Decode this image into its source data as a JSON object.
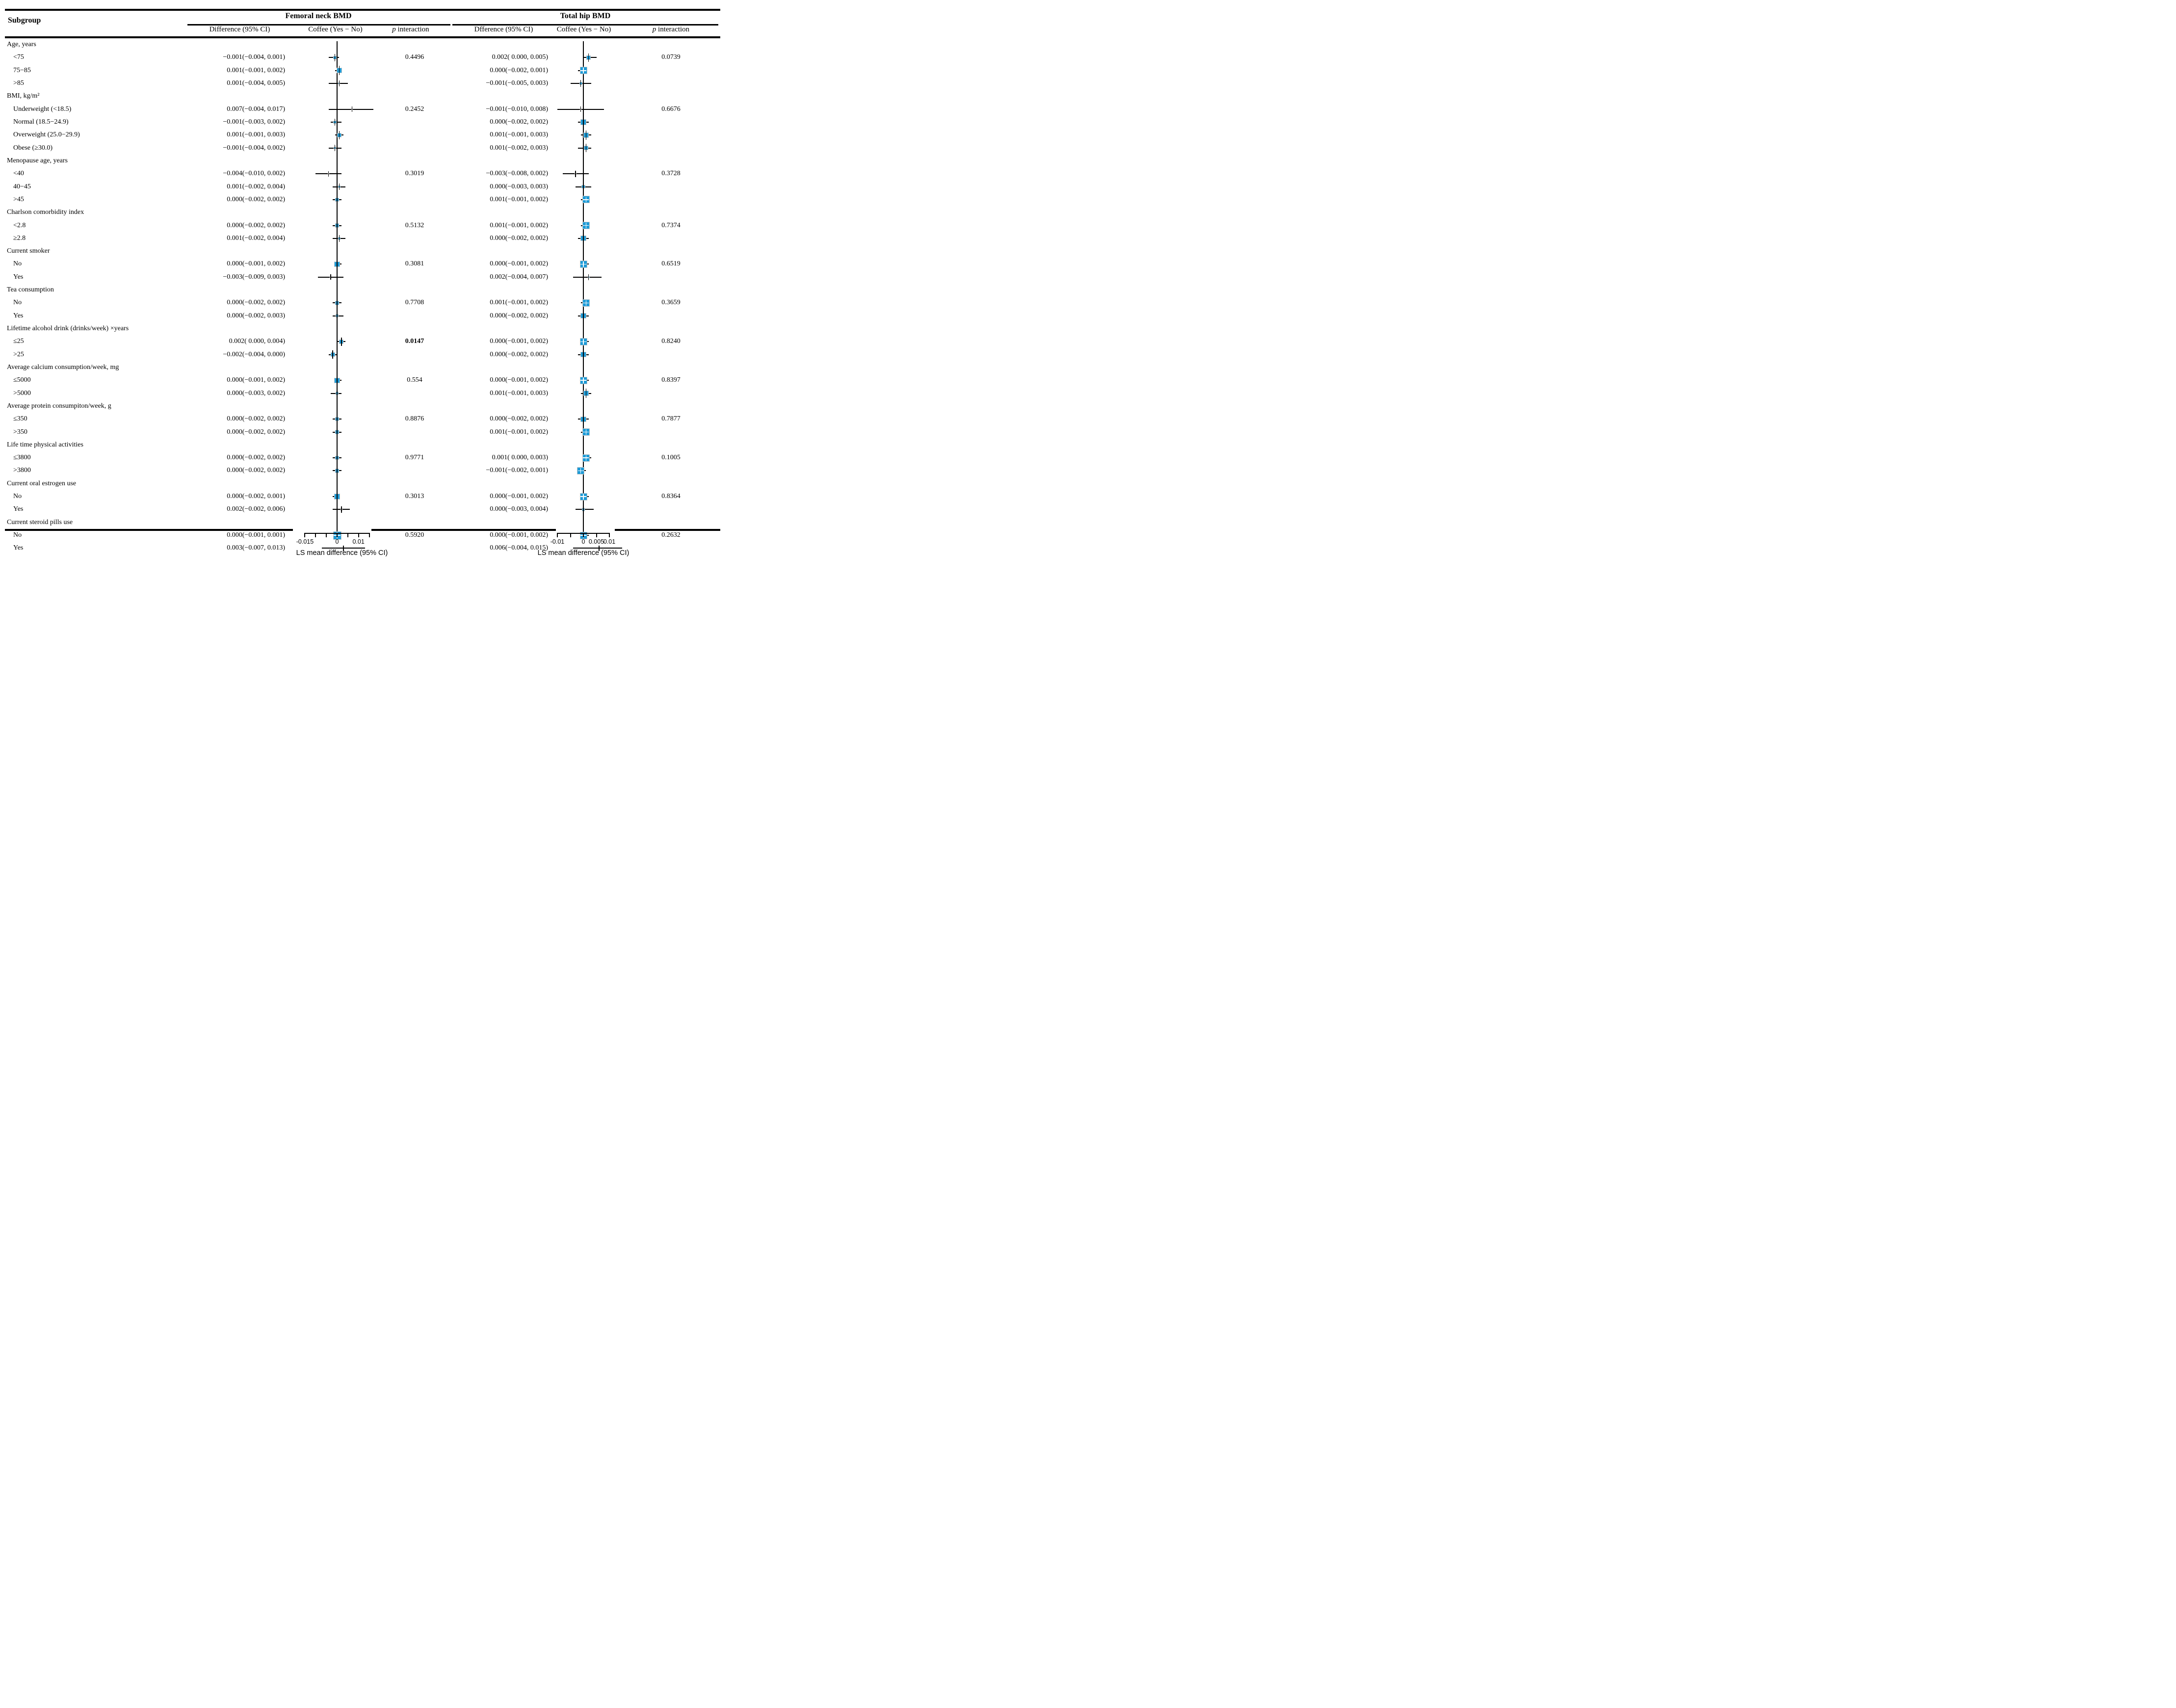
{
  "header": {
    "subgroup_label": "Subgroup",
    "panels": [
      {
        "title": "Femoral neck BMD",
        "diff_col": "Difference (95% CI)",
        "coffee_col": "Coffee (Yes − No)",
        "p_label": "p",
        "p_col": "interaction"
      },
      {
        "title": "Total hip BMD",
        "diff_col": "Dfference (95% CI)",
        "coffee_col": "Coffee (Yes − No)",
        "p_label": "p",
        "p_col": "interaction"
      }
    ]
  },
  "colors": {
    "marker_fill": "#1e9bd7",
    "marker_border": "#c9c9c9",
    "line": "#000000"
  },
  "chart_data": {
    "type": "forest",
    "fn_axis": {
      "min": -0.015,
      "max": 0.015,
      "ticks": [
        {
          "v": -0.015,
          "label": "-0.015"
        },
        {
          "v": -0.01,
          "label": ""
        },
        {
          "v": -0.005,
          "label": ""
        },
        {
          "v": 0,
          "label": "0"
        },
        {
          "v": 0.005,
          "label": ""
        },
        {
          "v": 0.01,
          "label": "0.01"
        },
        {
          "v": 0.015,
          "label": ""
        }
      ],
      "xlabel": "LS mean difference (95% CI)"
    },
    "th_axis": {
      "min": -0.01,
      "max": 0.01,
      "ticks": [
        {
          "v": -0.01,
          "label": "-0.01"
        },
        {
          "v": -0.005,
          "label": ""
        },
        {
          "v": 0,
          "label": "0"
        },
        {
          "v": 0.005,
          "label": "0.005"
        },
        {
          "v": 0.01,
          "label": "0.01"
        }
      ],
      "xlabel": "LS mean difference (95% CI)"
    },
    "groups": [
      {
        "label": "Age, years",
        "rows": [
          {
            "label": "<75",
            "fn_text": "−0.001(−0.004, 0.001)",
            "fn": {
              "est": -0.001,
              "lo": -0.004,
              "hi": 0.001
            },
            "fn_p": "0.4496",
            "th_text": "0.002( 0.000, 0.005)",
            "th": {
              "est": 0.002,
              "lo": 0.0,
              "hi": 0.005
            },
            "th_p": "0.0739"
          },
          {
            "label": "75−85",
            "fn_text": "0.001(−0.001, 0.002)",
            "fn": {
              "est": 0.001,
              "lo": -0.001,
              "hi": 0.002
            },
            "th_text": "0.000(−0.002, 0.001)",
            "th": {
              "est": 0.0,
              "lo": -0.002,
              "hi": 0.001
            }
          },
          {
            "label": ">85",
            "fn_text": "0.001(−0.004, 0.005)",
            "fn": {
              "est": 0.001,
              "lo": -0.004,
              "hi": 0.005
            },
            "th_text": "−0.001(−0.005, 0.003)",
            "th": {
              "est": -0.001,
              "lo": -0.005,
              "hi": 0.003
            }
          }
        ]
      },
      {
        "label": "BMI, kg/m²",
        "rows": [
          {
            "label": "Underweight (<18.5)",
            "fn_text": "0.007(−0.004, 0.017)",
            "fn": {
              "est": 0.007,
              "lo": -0.004,
              "hi": 0.017
            },
            "fn_p": "0.2452",
            "th_text": "−0.001(−0.010, 0.008)",
            "th": {
              "est": -0.001,
              "lo": -0.01,
              "hi": 0.008
            },
            "th_p": "0.6676"
          },
          {
            "label": "Normal (18.5−24.9)",
            "fn_text": "−0.001(−0.003, 0.002)",
            "fn": {
              "est": -0.001,
              "lo": -0.003,
              "hi": 0.002
            },
            "th_text": "0.000(−0.002, 0.002)",
            "th": {
              "est": 0.0,
              "lo": -0.002,
              "hi": 0.002
            }
          },
          {
            "label": "Overweight (25.0−29.9)",
            "fn_text": "0.001(−0.001, 0.003)",
            "fn": {
              "est": 0.001,
              "lo": -0.001,
              "hi": 0.003
            },
            "th_text": "0.001(−0.001, 0.003)",
            "th": {
              "est": 0.001,
              "lo": -0.001,
              "hi": 0.003
            }
          },
          {
            "label": "Obese (≥30.0)",
            "fn_text": "−0.001(−0.004, 0.002)",
            "fn": {
              "est": -0.001,
              "lo": -0.004,
              "hi": 0.002
            },
            "th_text": "0.001(−0.002, 0.003)",
            "th": {
              "est": 0.001,
              "lo": -0.002,
              "hi": 0.003
            }
          }
        ]
      },
      {
        "label": "Menopause age, years",
        "rows": [
          {
            "label": "<40",
            "fn_text": "−0.004(−0.010, 0.002)",
            "fn": {
              "est": -0.004,
              "lo": -0.01,
              "hi": 0.002
            },
            "fn_p": "0.3019",
            "th_text": "−0.003(−0.008, 0.002)",
            "th": {
              "est": -0.003,
              "lo": -0.008,
              "hi": 0.002
            },
            "th_p": "0.3728"
          },
          {
            "label": "40−45",
            "fn_text": "0.001(−0.002, 0.004)",
            "fn": {
              "est": 0.001,
              "lo": -0.002,
              "hi": 0.004
            },
            "th_text": "0.000(−0.003, 0.003)",
            "th": {
              "est": 0.0,
              "lo": -0.003,
              "hi": 0.003
            }
          },
          {
            "label": ">45",
            "fn_text": "0.000(−0.002, 0.002)",
            "fn": {
              "est": 0.0,
              "lo": -0.002,
              "hi": 0.002
            },
            "th_text": "0.001(−0.001, 0.002)",
            "th": {
              "est": 0.001,
              "lo": -0.001,
              "hi": 0.002
            }
          }
        ]
      },
      {
        "label": "Charlson comorbidity index",
        "rows": [
          {
            "label": "<2.8",
            "fn_text": "0.000(−0.002, 0.002)",
            "fn": {
              "est": 0.0,
              "lo": -0.002,
              "hi": 0.002
            },
            "fn_p": "0.5132",
            "th_text": "0.001(−0.001, 0.002)",
            "th": {
              "est": 0.001,
              "lo": -0.001,
              "hi": 0.002
            },
            "th_p": "0.7374"
          },
          {
            "label": "≥2.8",
            "fn_text": "0.001(−0.002, 0.004)",
            "fn": {
              "est": 0.001,
              "lo": -0.002,
              "hi": 0.004
            },
            "th_text": "0.000(−0.002, 0.002)",
            "th": {
              "est": 0.0,
              "lo": -0.002,
              "hi": 0.002
            }
          }
        ]
      },
      {
        "label": "Current smoker",
        "rows": [
          {
            "label": "No",
            "fn_text": "0.000(−0.001, 0.002)",
            "fn": {
              "est": 0.0,
              "lo": -0.001,
              "hi": 0.002
            },
            "fn_p": "0.3081",
            "th_text": "0.000(−0.001, 0.002)",
            "th": {
              "est": 0.0,
              "lo": -0.001,
              "hi": 0.002
            },
            "th_p": "0.6519"
          },
          {
            "label": "Yes",
            "fn_text": "−0.003(−0.009, 0.003)",
            "fn": {
              "est": -0.003,
              "lo": -0.009,
              "hi": 0.003
            },
            "th_text": "0.002(−0.004, 0.007)",
            "th": {
              "est": 0.002,
              "lo": -0.004,
              "hi": 0.007
            }
          }
        ]
      },
      {
        "label": "Tea consumption",
        "rows": [
          {
            "label": "No",
            "fn_text": "0.000(−0.002, 0.002)",
            "fn": {
              "est": 0.0,
              "lo": -0.002,
              "hi": 0.002
            },
            "fn_p": "0.7708",
            "th_text": "0.001(−0.001, 0.002)",
            "th": {
              "est": 0.001,
              "lo": -0.001,
              "hi": 0.002
            },
            "th_p": "0.3659"
          },
          {
            "label": "Yes",
            "fn_text": "0.000(−0.002, 0.003)",
            "fn": {
              "est": 0.0,
              "lo": -0.002,
              "hi": 0.003
            },
            "th_text": "0.000(−0.002, 0.002)",
            "th": {
              "est": 0.0,
              "lo": -0.002,
              "hi": 0.002
            }
          }
        ]
      },
      {
        "label": "Lifetime alcohol drink (drinks/week) ×years",
        "rows": [
          {
            "label": "≤25",
            "fn_text": "0.002( 0.000, 0.004)",
            "fn": {
              "est": 0.002,
              "lo": 0.0,
              "hi": 0.004
            },
            "fn_p": "0.0147",
            "fn_p_bold": true,
            "th_text": "0.000(−0.001, 0.002)",
            "th": {
              "est": 0.0,
              "lo": -0.001,
              "hi": 0.002
            },
            "th_p": "0.8240"
          },
          {
            "label": ">25",
            "fn_text": "−0.002(−0.004, 0.000)",
            "fn": {
              "est": -0.002,
              "lo": -0.004,
              "hi": 0.0
            },
            "th_text": "0.000(−0.002, 0.002)",
            "th": {
              "est": 0.0,
              "lo": -0.002,
              "hi": 0.002
            }
          }
        ]
      },
      {
        "label": "Average calcium consumption/week, mg",
        "rows": [
          {
            "label": "≤5000",
            "fn_text": "0.000(−0.001, 0.002)",
            "fn": {
              "est": 0.0,
              "lo": -0.001,
              "hi": 0.002
            },
            "fn_p": "0.554",
            "th_text": "0.000(−0.001, 0.002)",
            "th": {
              "est": 0.0,
              "lo": -0.001,
              "hi": 0.002
            },
            "th_p": "0.8397"
          },
          {
            "label": ">5000",
            "fn_text": "0.000(−0.003, 0.002)",
            "fn": {
              "est": 0.0,
              "lo": -0.003,
              "hi": 0.002
            },
            "th_text": "0.001(−0.001, 0.003)",
            "th": {
              "est": 0.001,
              "lo": -0.001,
              "hi": 0.003
            }
          }
        ]
      },
      {
        "label": "Average protein consumpiton/week, g",
        "rows": [
          {
            "label": "≤350",
            "fn_text": "0.000(−0.002, 0.002)",
            "fn": {
              "est": 0.0,
              "lo": -0.002,
              "hi": 0.002
            },
            "fn_p": "0.8876",
            "th_text": "0.000(−0.002, 0.002)",
            "th": {
              "est": 0.0,
              "lo": -0.002,
              "hi": 0.002
            },
            "th_p": "0.7877"
          },
          {
            "label": ">350",
            "fn_text": "0.000(−0.002, 0.002)",
            "fn": {
              "est": 0.0,
              "lo": -0.002,
              "hi": 0.002
            },
            "th_text": "0.001(−0.001, 0.002)",
            "th": {
              "est": 0.001,
              "lo": -0.001,
              "hi": 0.002
            }
          }
        ]
      },
      {
        "label": "Life time physical activities",
        "rows": [
          {
            "label": "≤3800",
            "fn_text": "0.000(−0.002, 0.002)",
            "fn": {
              "est": 0.0,
              "lo": -0.002,
              "hi": 0.002
            },
            "fn_p": "0.9771",
            "th_text": "0.001( 0.000, 0.003)",
            "th": {
              "est": 0.001,
              "lo": 0.0,
              "hi": 0.003
            },
            "th_p": "0.1005"
          },
          {
            "label": ">3800",
            "fn_text": "0.000(−0.002, 0.002)",
            "fn": {
              "est": 0.0,
              "lo": -0.002,
              "hi": 0.002
            },
            "th_text": "−0.001(−0.002, 0.001)",
            "th": {
              "est": -0.001,
              "lo": -0.002,
              "hi": 0.001
            }
          }
        ]
      },
      {
        "label": "Current oral estrogen use",
        "rows": [
          {
            "label": "No",
            "fn_text": "0.000(−0.002, 0.001)",
            "fn": {
              "est": 0.0,
              "lo": -0.002,
              "hi": 0.001
            },
            "fn_p": "0.3013",
            "th_text": "0.000(−0.001, 0.002)",
            "th": {
              "est": 0.0,
              "lo": -0.001,
              "hi": 0.002
            },
            "th_p": "0.8364"
          },
          {
            "label": "Yes",
            "fn_text": "0.002(−0.002, 0.006)",
            "fn": {
              "est": 0.002,
              "lo": -0.002,
              "hi": 0.006
            },
            "th_text": "0.000(−0.003, 0.004)",
            "th": {
              "est": 0.0,
              "lo": -0.003,
              "hi": 0.004
            }
          }
        ]
      },
      {
        "label": "Current steroid pills use",
        "rows": [
          {
            "label": "No",
            "fn_text": "0.000(−0.001, 0.001)",
            "fn": {
              "est": 0.0,
              "lo": -0.001,
              "hi": 0.001
            },
            "fn_p": "0.5920",
            "th_text": "0.000(−0.001, 0.002)",
            "th": {
              "est": 0.0,
              "lo": -0.001,
              "hi": 0.002
            },
            "th_p": "0.2632"
          },
          {
            "label": "Yes",
            "fn_text": "0.003(−0.007, 0.013)",
            "fn": {
              "est": 0.003,
              "lo": -0.007,
              "hi": 0.013
            },
            "th_text": "0.006(−0.004, 0.015)",
            "th": {
              "est": 0.006,
              "lo": -0.004,
              "hi": 0.015
            }
          }
        ]
      }
    ]
  }
}
